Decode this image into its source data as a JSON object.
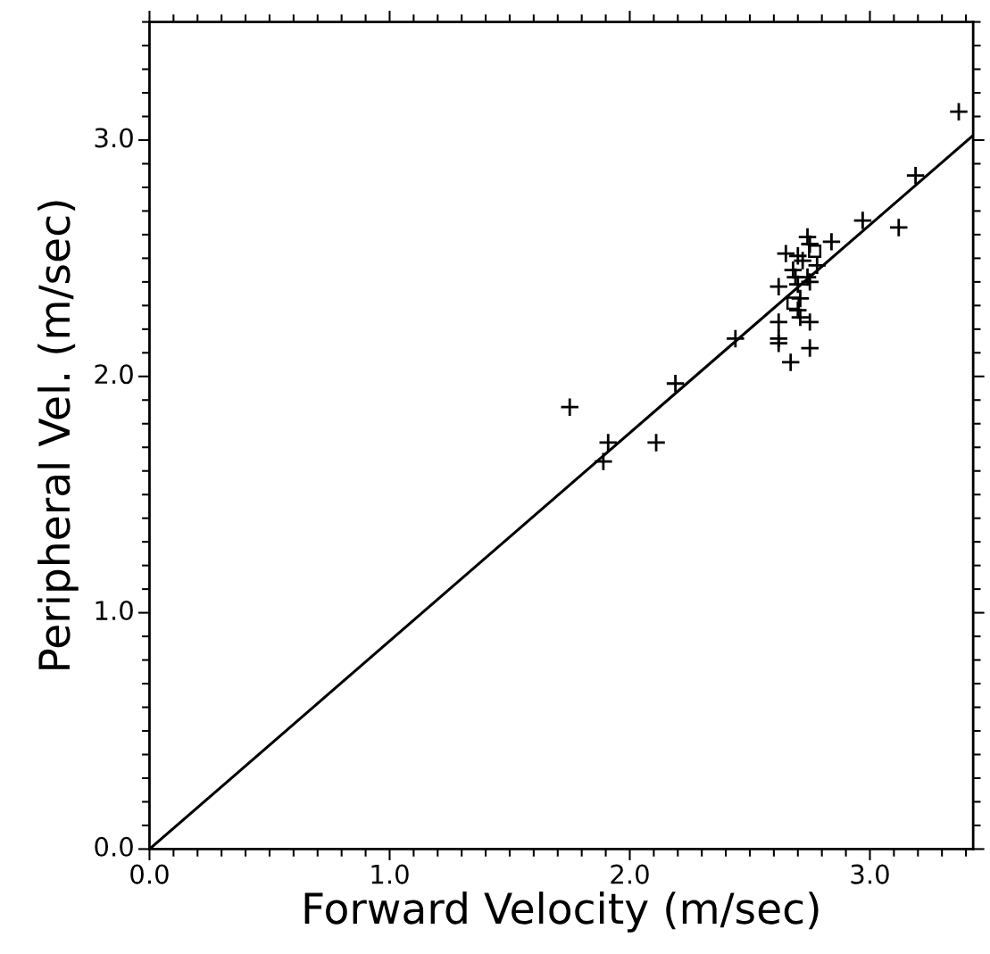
{
  "chart_data": {
    "type": "scatter",
    "xlabel": "Forward Velocity (m/sec)",
    "ylabel": "Peripheral Vel. (m/sec)",
    "xlim": [
      0,
      3.43
    ],
    "ylim": [
      0,
      3.5
    ],
    "xticks": [
      {
        "value": 0,
        "label": "0.0"
      },
      {
        "value": 0.1,
        "label": null
      },
      {
        "value": 0.2,
        "label": null
      },
      {
        "value": 0.3,
        "label": null
      },
      {
        "value": 0.4,
        "label": null
      },
      {
        "value": 0.5,
        "label": null
      },
      {
        "value": 0.6,
        "label": null
      },
      {
        "value": 0.7,
        "label": null
      },
      {
        "value": 0.8,
        "label": null
      },
      {
        "value": 0.9,
        "label": null
      },
      {
        "value": 1.0,
        "label": "1.0"
      },
      {
        "value": 1.1,
        "label": null
      },
      {
        "value": 1.2,
        "label": null
      },
      {
        "value": 1.3,
        "label": null
      },
      {
        "value": 1.4,
        "label": null
      },
      {
        "value": 1.5,
        "label": null
      },
      {
        "value": 1.6,
        "label": null
      },
      {
        "value": 1.7,
        "label": null
      },
      {
        "value": 1.8,
        "label": null
      },
      {
        "value": 1.9,
        "label": null
      },
      {
        "value": 2.0,
        "label": "2.0"
      },
      {
        "value": 2.1,
        "label": null
      },
      {
        "value": 2.2,
        "label": null
      },
      {
        "value": 2.3,
        "label": null
      },
      {
        "value": 2.4,
        "label": null
      },
      {
        "value": 2.5,
        "label": null
      },
      {
        "value": 2.6,
        "label": null
      },
      {
        "value": 2.7,
        "label": null
      },
      {
        "value": 2.8,
        "label": null
      },
      {
        "value": 2.9,
        "label": null
      },
      {
        "value": 3.0,
        "label": "3.0"
      },
      {
        "value": 3.1,
        "label": null
      },
      {
        "value": 3.2,
        "label": null
      },
      {
        "value": 3.3,
        "label": null
      },
      {
        "value": 3.4,
        "label": null
      }
    ],
    "yticks": [
      {
        "value": 0,
        "label": "0.0"
      },
      {
        "value": 0.1,
        "label": null
      },
      {
        "value": 0.2,
        "label": null
      },
      {
        "value": 0.3,
        "label": null
      },
      {
        "value": 0.4,
        "label": null
      },
      {
        "value": 0.5,
        "label": null
      },
      {
        "value": 0.6,
        "label": null
      },
      {
        "value": 0.7,
        "label": null
      },
      {
        "value": 0.8,
        "label": null
      },
      {
        "value": 0.9,
        "label": null
      },
      {
        "value": 1.0,
        "label": "1.0"
      },
      {
        "value": 1.1,
        "label": null
      },
      {
        "value": 1.2,
        "label": null
      },
      {
        "value": 1.3,
        "label": null
      },
      {
        "value": 1.4,
        "label": null
      },
      {
        "value": 1.5,
        "label": null
      },
      {
        "value": 1.6,
        "label": null
      },
      {
        "value": 1.7,
        "label": null
      },
      {
        "value": 1.8,
        "label": null
      },
      {
        "value": 1.9,
        "label": null
      },
      {
        "value": 2.0,
        "label": "2.0"
      },
      {
        "value": 2.1,
        "label": null
      },
      {
        "value": 2.2,
        "label": null
      },
      {
        "value": 2.3,
        "label": null
      },
      {
        "value": 2.4,
        "label": null
      },
      {
        "value": 2.5,
        "label": null
      },
      {
        "value": 2.6,
        "label": null
      },
      {
        "value": 2.7,
        "label": null
      },
      {
        "value": 2.8,
        "label": null
      },
      {
        "value": 2.9,
        "label": null
      },
      {
        "value": 3.0,
        "label": "3.0"
      },
      {
        "value": 3.1,
        "label": null
      },
      {
        "value": 3.2,
        "label": null
      },
      {
        "value": 3.3,
        "label": null
      },
      {
        "value": 3.4,
        "label": null
      },
      {
        "value": 3.5,
        "label": null
      }
    ],
    "grid": false,
    "legend": false,
    "tick_labels": true,
    "series": [
      {
        "marker": "cross",
        "color": "#000000",
        "x": [
          3.37,
          3.19,
          2.97,
          3.12,
          2.84,
          1.75,
          1.91,
          1.89,
          2.11,
          2.19,
          2.44,
          2.74,
          2.75,
          2.65,
          2.7,
          2.72,
          2.78,
          2.68,
          2.69,
          2.74,
          2.75,
          2.62,
          2.7,
          2.71,
          2.7,
          2.71,
          2.62,
          2.75,
          2.62,
          2.62,
          2.75,
          2.67
        ],
        "values": [
          3.12,
          2.85,
          2.66,
          2.63,
          2.57,
          1.87,
          1.72,
          1.64,
          1.72,
          1.97,
          2.16,
          2.59,
          2.56,
          2.52,
          2.51,
          2.49,
          2.47,
          2.45,
          2.42,
          2.42,
          2.4,
          2.38,
          2.39,
          2.33,
          2.28,
          2.25,
          2.23,
          2.23,
          2.16,
          2.14,
          2.12,
          2.06
        ]
      },
      {
        "marker": "square",
        "color": "#000000",
        "x": [
          2.77,
          2.68
        ],
        "values": [
          2.53,
          2.31
        ]
      },
      {
        "type": "line",
        "marker": "none",
        "color": "#000000",
        "x": [
          0,
          3.43
        ],
        "values": [
          0,
          3.02
        ]
      }
    ]
  }
}
